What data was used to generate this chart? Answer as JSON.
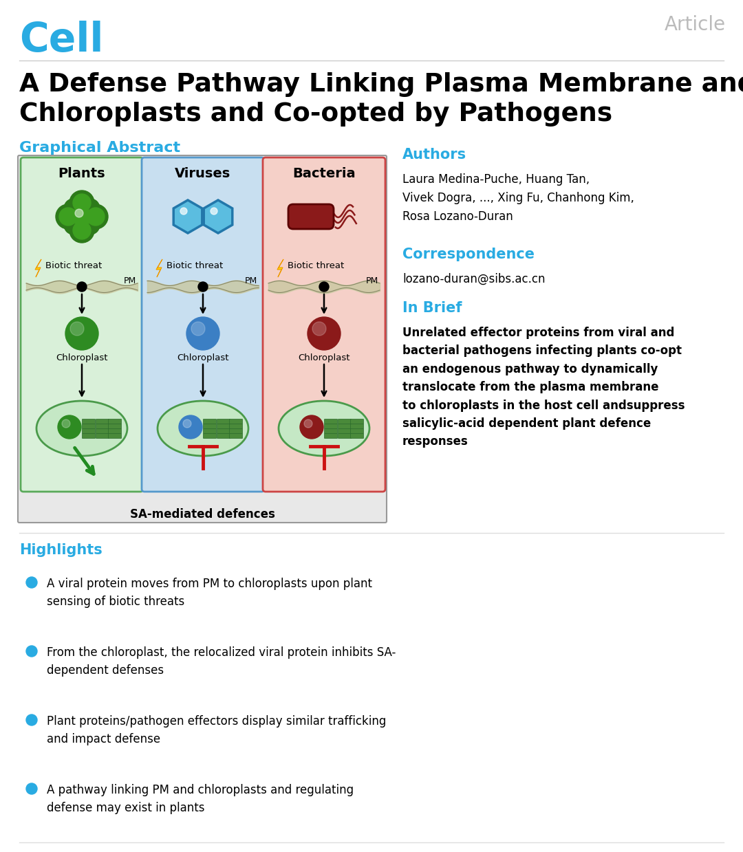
{
  "title_line1": "A Defense Pathway Linking Plasma Membrane and",
  "title_line2": "Chloroplasts and Co-opted by Pathogens",
  "journal": "Cell",
  "article_label": "Article",
  "graphical_abstract_label": "Graphical Abstract",
  "authors_label": "Authors",
  "authors_text": "Laura Medina-Puche, Huang Tan,\nVivek Dogra, ..., Xing Fu, Chanhong Kim,\nRosa Lozano-Duran",
  "correspondence_label": "Correspondence",
  "correspondence_text": "lozano-duran@sibs.ac.cn",
  "in_brief_label": "In Brief",
  "in_brief_text": "Unrelated effector proteins from viral and\nbacterial pathogens infecting plants co-opt\nan endogenous pathway to dynamically\ntranslocate from the plasma membrane\nto chloroplasts in the host cell and⁠suppress\nsalicylic-acid dependent plant defence\nresponses",
  "highlights_label": "Highlights",
  "highlights": [
    "A viral protein moves from PM to chloroplasts upon plant\nsensing of biotic threats",
    "From the chloroplast, the relocalized viral protein inhibits SA-\ndependent defenses",
    "Plant proteins/pathogen effectors display similar trafficking\nand impact defense",
    "A pathway linking PM and chloroplasts and regulating\ndefense may exist in plants"
  ],
  "heading_color": "#29ABE2",
  "red_color": "#C1272D"
}
